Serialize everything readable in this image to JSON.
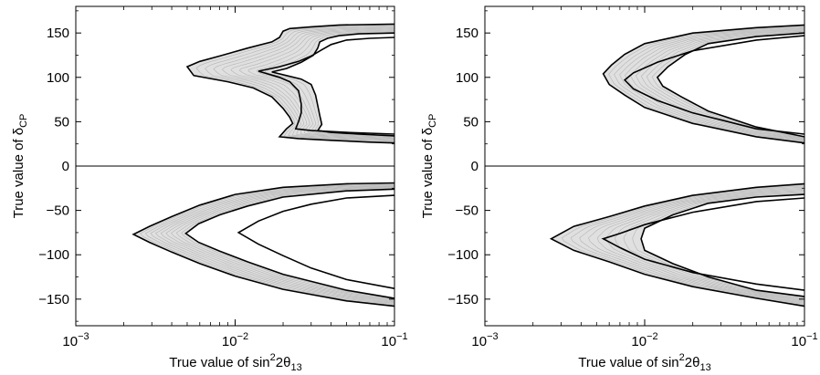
{
  "chart_data": [
    {
      "type": "contour",
      "panel": "left",
      "xlabel": {
        "main": "True value of sin",
        "sup": "2",
        "mid": "2θ",
        "sub": "13"
      },
      "ylabel": {
        "main": "True value of δ",
        "sub": "CP"
      },
      "xscale": "log",
      "xlim": [
        0.001,
        0.1
      ],
      "ylim": [
        -180,
        180
      ],
      "xticks": [
        {
          "value": 0.001,
          "base": "10",
          "exp": "−3"
        },
        {
          "value": 0.01,
          "base": "10",
          "exp": "−2"
        },
        {
          "value": 0.1,
          "base": "10",
          "exp": "−1"
        }
      ],
      "yticks": [
        {
          "value": 150,
          "label": "150"
        },
        {
          "value": 100,
          "label": "100"
        },
        {
          "value": 50,
          "label": "50"
        },
        {
          "value": 0,
          "label": "0"
        },
        {
          "value": -50,
          "label": "−50"
        },
        {
          "value": -100,
          "label": "−100"
        },
        {
          "value": -150,
          "label": "−150"
        }
      ],
      "hline": 0,
      "grid": false,
      "bands": [
        {
          "outer": [
            [
              0.1,
              160
            ],
            [
              0.045,
              159
            ],
            [
              0.03,
              157
            ],
            [
              0.022,
              155
            ],
            [
              0.02,
              152
            ],
            [
              0.019,
              145
            ],
            [
              0.017,
              140
            ],
            [
              0.012,
              133
            ],
            [
              0.008,
              124
            ],
            [
              0.006,
              118
            ],
            [
              0.005,
              112
            ],
            [
              0.0055,
              102
            ],
            [
              0.009,
              95
            ],
            [
              0.013,
              88
            ],
            [
              0.017,
              78
            ],
            [
              0.02,
              65
            ],
            [
              0.022,
              55
            ],
            [
              0.023,
              48
            ],
            [
              0.021,
              42
            ],
            [
              0.019,
              33
            ],
            [
              0.025,
              31
            ],
            [
              0.04,
              29
            ],
            [
              0.07,
              27
            ],
            [
              0.1,
              26
            ]
          ],
          "inner": [
            [
              0.1,
              150
            ],
            [
              0.06,
              149
            ],
            [
              0.045,
              147
            ],
            [
              0.038,
              144
            ],
            [
              0.034,
              140
            ],
            [
              0.033,
              133
            ],
            [
              0.031,
              125
            ],
            [
              0.026,
              117
            ],
            [
              0.021,
              110
            ],
            [
              0.017,
              106
            ],
            [
              0.021,
              102
            ],
            [
              0.026,
              98
            ],
            [
              0.03,
              92
            ],
            [
              0.032,
              80
            ],
            [
              0.033,
              68
            ],
            [
              0.034,
              57
            ],
            [
              0.035,
              47
            ],
            [
              0.033,
              40
            ],
            [
              0.04,
              38
            ],
            [
              0.06,
              36
            ],
            [
              0.1,
              34
            ]
          ]
        },
        {
          "outer": [
            [
              0.1,
              -19
            ],
            [
              0.05,
              -20
            ],
            [
              0.02,
              -24
            ],
            [
              0.01,
              -32
            ],
            [
              0.006,
              -44
            ],
            [
              0.004,
              -57
            ],
            [
              0.0029,
              -68
            ],
            [
              0.0023,
              -77
            ],
            [
              0.0029,
              -86
            ],
            [
              0.004,
              -97
            ],
            [
              0.006,
              -110
            ],
            [
              0.01,
              -124
            ],
            [
              0.02,
              -139
            ],
            [
              0.05,
              -152
            ],
            [
              0.1,
              -158
            ]
          ],
          "inner": [
            [
              0.1,
              -26
            ],
            [
              0.05,
              -28
            ],
            [
              0.02,
              -35
            ],
            [
              0.012,
              -45
            ],
            [
              0.008,
              -55
            ],
            [
              0.0059,
              -65
            ],
            [
              0.0049,
              -76
            ],
            [
              0.0059,
              -86
            ],
            [
              0.008,
              -96
            ],
            [
              0.012,
              -108
            ],
            [
              0.02,
              -122
            ],
            [
              0.05,
              -140
            ],
            [
              0.1,
              -149
            ]
          ]
        }
      ],
      "middle_lines": [
        [
          [
            0.1,
            145
          ],
          [
            0.07,
            144
          ],
          [
            0.05,
            142
          ],
          [
            0.04,
            137
          ],
          [
            0.035,
            131
          ],
          [
            0.03,
            124
          ],
          [
            0.025,
            118
          ],
          [
            0.019,
            112
          ],
          [
            0.014,
            107
          ],
          [
            0.019,
            100
          ],
          [
            0.022,
            95
          ],
          [
            0.025,
            85
          ],
          [
            0.026,
            70
          ],
          [
            0.026,
            60
          ],
          [
            0.025,
            50
          ],
          [
            0.024,
            42
          ],
          [
            0.03,
            40
          ],
          [
            0.05,
            38
          ],
          [
            0.1,
            36
          ]
        ],
        [
          [
            0.1,
            -33
          ],
          [
            0.05,
            -36
          ],
          [
            0.03,
            -43
          ],
          [
            0.02,
            -51
          ],
          [
            0.014,
            -62
          ],
          [
            0.0105,
            -75
          ],
          [
            0.014,
            -88
          ],
          [
            0.02,
            -101
          ],
          [
            0.03,
            -115
          ],
          [
            0.05,
            -128
          ],
          [
            0.1,
            -138
          ]
        ]
      ]
    },
    {
      "type": "contour",
      "panel": "right",
      "xlabel": {
        "main": "True value of sin",
        "sup": "2",
        "mid": "2θ",
        "sub": "13"
      },
      "ylabel": {
        "main": "True value of δ",
        "sub": "CP"
      },
      "xscale": "log",
      "xlim": [
        0.001,
        0.1
      ],
      "ylim": [
        -180,
        180
      ],
      "xticks": [
        {
          "value": 0.001,
          "base": "10",
          "exp": "−3"
        },
        {
          "value": 0.01,
          "base": "10",
          "exp": "−2"
        },
        {
          "value": 0.1,
          "base": "10",
          "exp": "−1"
        }
      ],
      "yticks": [
        {
          "value": 150,
          "label": "150"
        },
        {
          "value": 100,
          "label": "100"
        },
        {
          "value": 50,
          "label": "50"
        },
        {
          "value": 0,
          "label": "0"
        },
        {
          "value": -50,
          "label": "−50"
        },
        {
          "value": -100,
          "label": "−100"
        },
        {
          "value": -150,
          "label": "−150"
        }
      ],
      "hline": 0,
      "grid": false,
      "bands": [
        {
          "outer": [
            [
              0.1,
              159
            ],
            [
              0.05,
              156
            ],
            [
              0.02,
              150
            ],
            [
              0.01,
              138
            ],
            [
              0.0075,
              126
            ],
            [
              0.0062,
              114
            ],
            [
              0.0055,
              104
            ],
            [
              0.006,
              92
            ],
            [
              0.0075,
              80
            ],
            [
              0.01,
              66
            ],
            [
              0.02,
              48
            ],
            [
              0.05,
              33
            ],
            [
              0.1,
              26
            ]
          ],
          "inner": [
            [
              0.1,
              150
            ],
            [
              0.05,
              146
            ],
            [
              0.025,
              138
            ],
            [
              0.018,
              126
            ],
            [
              0.014,
              112
            ],
            [
              0.012,
              100
            ],
            [
              0.013,
              90
            ],
            [
              0.017,
              78
            ],
            [
              0.025,
              62
            ],
            [
              0.05,
              44
            ],
            [
              0.1,
              33
            ]
          ]
        },
        {
          "outer": [
            [
              0.1,
              -20
            ],
            [
              0.05,
              -24
            ],
            [
              0.02,
              -33
            ],
            [
              0.01,
              -45
            ],
            [
              0.006,
              -57
            ],
            [
              0.0036,
              -68
            ],
            [
              0.0026,
              -82
            ],
            [
              0.0036,
              -95
            ],
            [
              0.006,
              -108
            ],
            [
              0.01,
              -122
            ],
            [
              0.02,
              -136
            ],
            [
              0.05,
              -149
            ],
            [
              0.1,
              -158
            ]
          ],
          "inner": [
            [
              0.1,
              -32
            ],
            [
              0.05,
              -35
            ],
            [
              0.025,
              -42
            ],
            [
              0.015,
              -55
            ],
            [
              0.01,
              -70
            ],
            [
              0.0095,
              -82
            ],
            [
              0.01,
              -95
            ],
            [
              0.015,
              -110
            ],
            [
              0.025,
              -125
            ],
            [
              0.05,
              -140
            ],
            [
              0.1,
              -147
            ]
          ]
        }
      ],
      "middle_lines": [
        [
          [
            0.1,
            147
          ],
          [
            0.05,
            142
          ],
          [
            0.02,
            130
          ],
          [
            0.012,
            117
          ],
          [
            0.0085,
            105
          ],
          [
            0.0075,
            97
          ],
          [
            0.0085,
            87
          ],
          [
            0.012,
            74
          ],
          [
            0.02,
            60
          ],
          [
            0.05,
            42
          ],
          [
            0.1,
            36
          ]
        ],
        [
          [
            0.1,
            -36
          ],
          [
            0.05,
            -40
          ],
          [
            0.02,
            -52
          ],
          [
            0.01,
            -66
          ],
          [
            0.007,
            -76
          ],
          [
            0.0055,
            -82
          ],
          [
            0.007,
            -92
          ],
          [
            0.01,
            -105
          ],
          [
            0.02,
            -120
          ],
          [
            0.05,
            -133
          ],
          [
            0.1,
            -140
          ]
        ]
      ]
    }
  ]
}
